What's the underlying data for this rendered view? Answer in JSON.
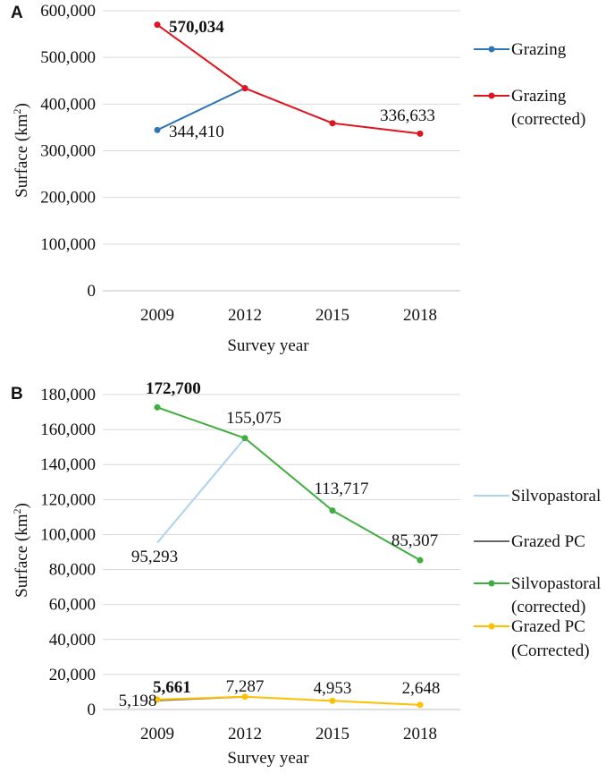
{
  "chart_data": [
    {
      "panel": "A",
      "type": "line",
      "xlabel": "Survey year",
      "ylabel": "Surface (km²)",
      "ylabel_base": "Surface (km",
      "ylabel_sup": "2",
      "ylabel_close": ")",
      "ylim": [
        0,
        600000
      ],
      "yticks": [
        "0",
        "100,000",
        "200,000",
        "300,000",
        "400,000",
        "500,000",
        "600,000"
      ],
      "categories": [
        "2009",
        "2012",
        "2015",
        "2018"
      ],
      "series": [
        {
          "name": "Grazing",
          "color": "#2e75b6",
          "values": [
            344410,
            434000,
            null,
            null
          ]
        },
        {
          "name": "Grazing (corrected)",
          "legend_lines": [
            "Grazing",
            "(corrected)"
          ],
          "color": "#e0141e",
          "values": [
            570034,
            434000,
            359000,
            336633
          ]
        }
      ],
      "annotations": [
        {
          "text": "570,034",
          "bold": true
        },
        {
          "text": "344,410",
          "bold": false
        },
        {
          "text": "336,633",
          "bold": false
        }
      ]
    },
    {
      "panel": "B",
      "type": "line",
      "xlabel": "Survey year",
      "ylabel": "Surface (km²)",
      "ylabel_base": "Surface (km",
      "ylabel_sup": "2",
      "ylabel_close": ")",
      "ylim": [
        0,
        180000
      ],
      "yticks": [
        "0",
        "20,000",
        "40,000",
        "60,000",
        "80,000",
        "100,000",
        "120,000",
        "140,000",
        "160,000",
        "180,000"
      ],
      "categories": [
        "2009",
        "2012",
        "2015",
        "2018"
      ],
      "series": [
        {
          "name": "Silvopastoral",
          "legend_lines": [
            "Silvopastoral"
          ],
          "color": "#a9d3ee",
          "marker": false,
          "values": [
            95293,
            155075,
            null,
            null
          ]
        },
        {
          "name": "Grazed PC",
          "legend_lines": [
            "Grazed PC"
          ],
          "color": "#666666",
          "marker": false,
          "values": [
            5198,
            7287,
            null,
            null
          ]
        },
        {
          "name": "Silvopastoral (corrected)",
          "legend_lines": [
            "Silvopastoral",
            "(corrected)"
          ],
          "color": "#3fae3f",
          "marker": true,
          "values": [
            172700,
            155075,
            113717,
            85307
          ]
        },
        {
          "name": "Grazed PC (Corrected)",
          "legend_lines": [
            "Grazed PC",
            "(Corrected)"
          ],
          "color": "#ffc000",
          "marker": true,
          "values": [
            5661,
            7287,
            4953,
            2648
          ]
        }
      ],
      "annotations": [
        {
          "text": "172,700",
          "bold": true
        },
        {
          "text": "155,075",
          "bold": false
        },
        {
          "text": "113,717",
          "bold": false
        },
        {
          "text": "85,307",
          "bold": false
        },
        {
          "text": "95,293",
          "bold": false
        },
        {
          "text": "5,661",
          "bold": true
        },
        {
          "text": "5,198",
          "bold": false
        },
        {
          "text": "7,287",
          "bold": false
        },
        {
          "text": "4,953",
          "bold": false
        },
        {
          "text": "2,648",
          "bold": false
        }
      ]
    }
  ]
}
